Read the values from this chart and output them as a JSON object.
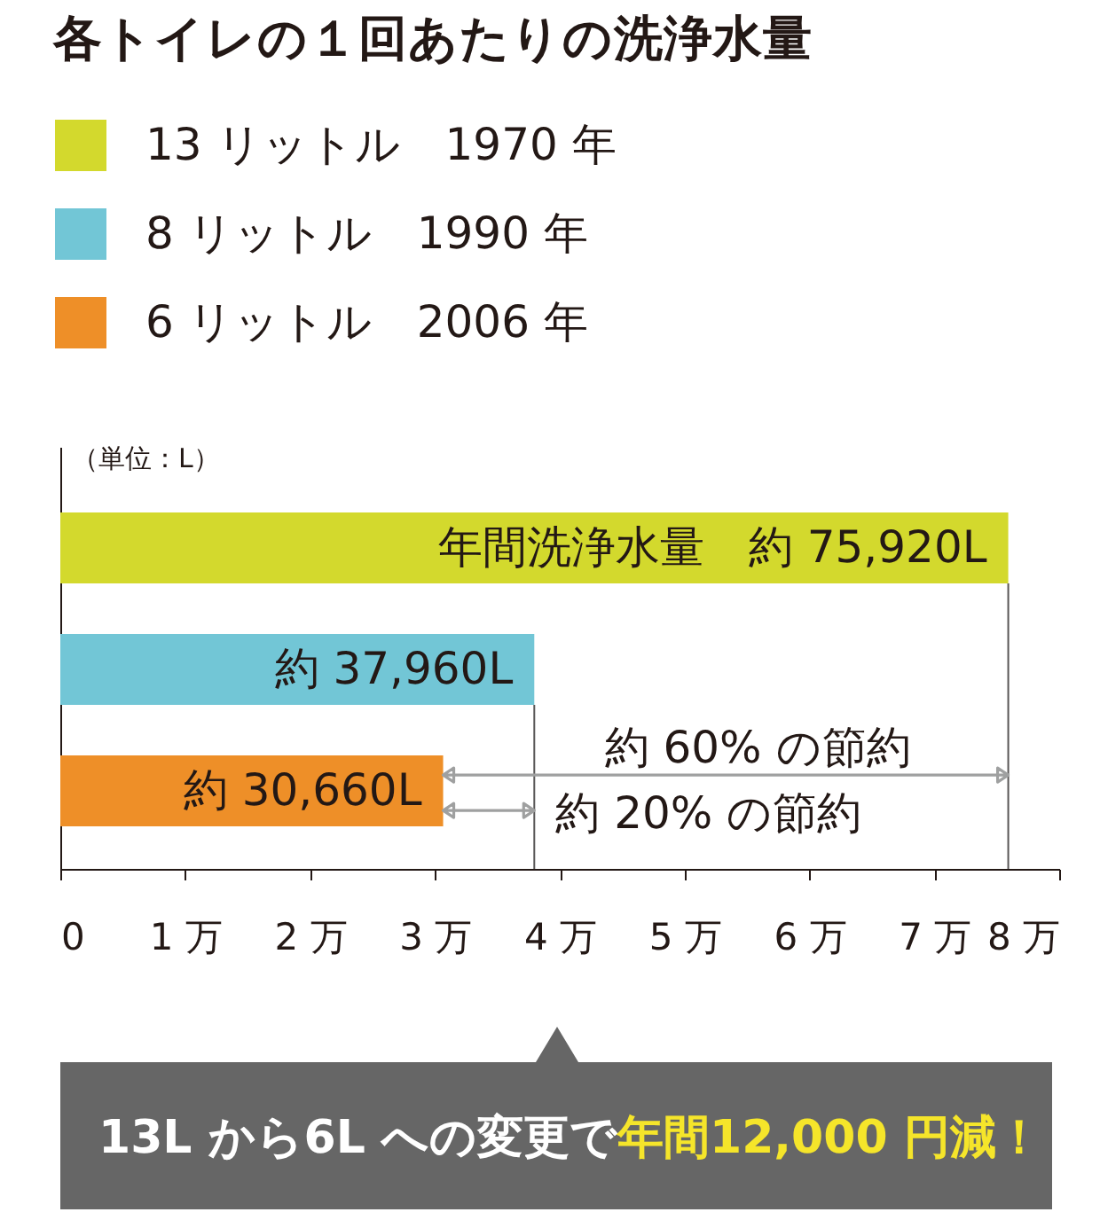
{
  "chart_data": {
    "type": "bar",
    "orientation": "horizontal",
    "stacked": true,
    "title": "各トイレの１回あたりの洗浄水量",
    "ylabel": "（単位：L）",
    "categories": [
      null,
      null,
      null
    ],
    "series": [
      {
        "name": "13 リットル　1970 年",
        "color": "#d3d92d",
        "values": [
          7.592,
          null,
          null
        ],
        "value_labels": [
          "年間洗浄水量　約 75,920L",
          null,
          null
        ]
      },
      {
        "name": "8 リットル　1990 年",
        "color": "#72c6d6",
        "values": [
          null,
          3.796,
          null
        ],
        "value_labels": [
          null,
          "約 37,960L",
          null
        ]
      },
      {
        "name": "6 リットル　2006 年",
        "color": "#ee8f28",
        "values": [
          null,
          null,
          3.066
        ],
        "value_labels": [
          null,
          null,
          "約 30,660L"
        ]
      }
    ],
    "xlim": [
      0,
      8
    ],
    "xticks": [
      0,
      {
        "value": 1,
        "label": "1 万"
      },
      {
        "value": 2,
        "label": "2 万"
      },
      {
        "value": 3,
        "label": "3 万"
      },
      {
        "value": 4,
        "label": "4 万"
      },
      {
        "value": 5,
        "label": "5 万"
      },
      {
        "value": 6,
        "label": "6 万"
      },
      {
        "value": 7,
        "label": "7 万"
      },
      {
        "value": 8,
        "label": "8 万"
      }
    ],
    "tick_labels": "x",
    "legend": "top left",
    "ref_lines": [
      {
        "axis": "x",
        "value": 7.592,
        "color": "#595757"
      },
      {
        "axis": "x",
        "value": 3.796,
        "color": "#595757"
      }
    ],
    "annotations": [
      {
        "text": "約 60% の節約",
        "x": 7.592
      },
      {
        "text": "約 20% の節約",
        "x": 3.796
      },
      "13L から6L への変更で",
      "年間12,000 円減！"
    ]
  }
}
